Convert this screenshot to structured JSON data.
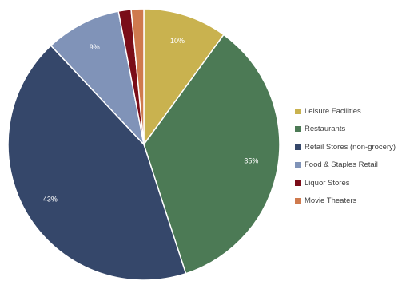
{
  "chart_data": {
    "type": "pie",
    "title": "",
    "slices": [
      {
        "name": "Leisure Facilities",
        "value": 10,
        "label": "10%",
        "color": "#c9b24f"
      },
      {
        "name": "Restaurants",
        "value": 35,
        "label": "35%",
        "color": "#4c7a55"
      },
      {
        "name": "Retail Stores (non-grocery)",
        "value": 43,
        "label": "43%",
        "color": "#35476a"
      },
      {
        "name": "Food & Staples Retail",
        "value": 9,
        "label": "9%",
        "color": "#8093b8"
      },
      {
        "name": "Liquor Stores",
        "value": 1.5,
        "label": "",
        "color": "#7a0d18"
      },
      {
        "name": "Movie Theaters",
        "value": 1.5,
        "label": "",
        "color": "#cf7a4e"
      }
    ],
    "legend": {
      "placement": "right"
    },
    "start_angle": "12 o'clock",
    "direction": "clockwise"
  }
}
